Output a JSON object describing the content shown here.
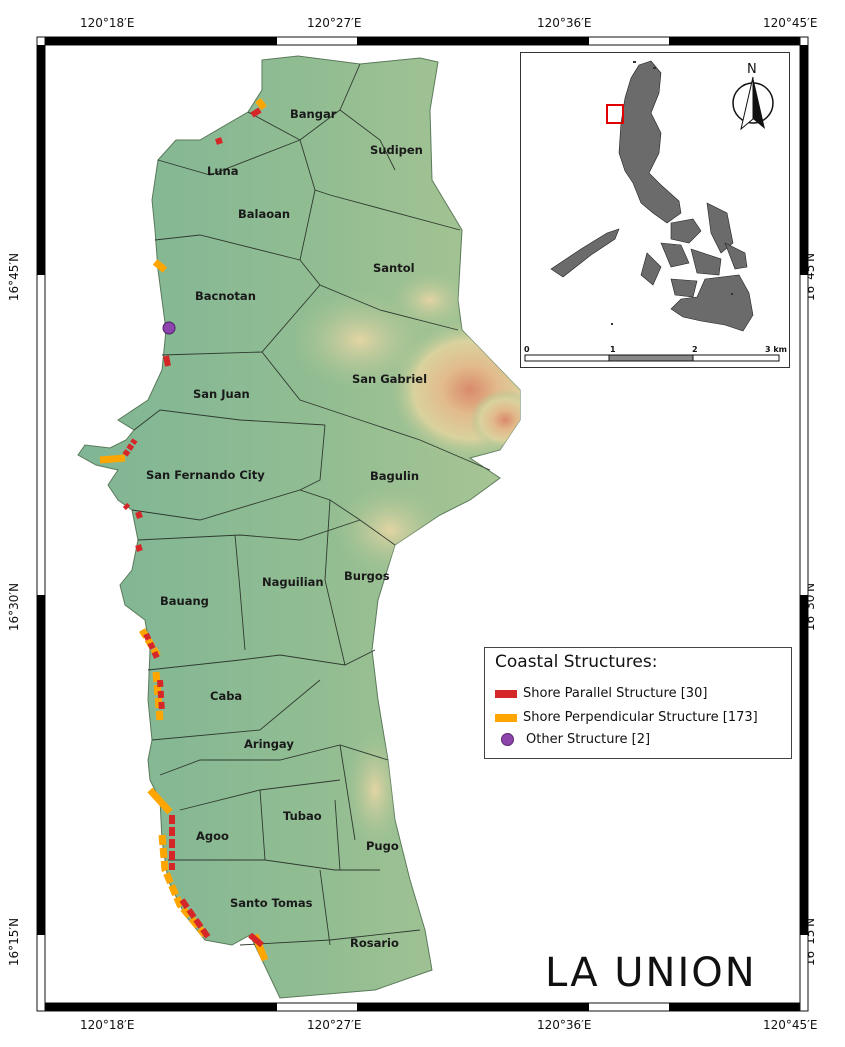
{
  "title": "LA UNION",
  "coordinates": {
    "top": [
      "120°18′E",
      "120°27′E",
      "120°36′E",
      "120°45′E"
    ],
    "bottom": [
      "120°18′E",
      "120°27′E",
      "120°36′E",
      "120°45′E"
    ],
    "left": [
      "16°45′N",
      "16°30′N",
      "16°15′N"
    ],
    "right": [
      "16°45′N",
      "16°30′N",
      "16°15′N"
    ]
  },
  "municipalities": [
    "Bangar",
    "Sudipen",
    "Luna",
    "Balaoan",
    "Santol",
    "Bacnotan",
    "San Gabriel",
    "San Juan",
    "San Fernando City",
    "Bagulin",
    "Naguilian",
    "Burgos",
    "Bauang",
    "Caba",
    "Aringay",
    "Tubao",
    "Agoo",
    "Pugo",
    "Santo Tomas",
    "Rosario"
  ],
  "legend": {
    "title": "Coastal Structures:",
    "items": [
      {
        "label": "Shore Parallel Structure [30]",
        "color": "#d62728"
      },
      {
        "label": "Shore Perpendicular Structure [173]",
        "color": "#ffa500"
      },
      {
        "label": "Other Structure [2]",
        "color": "#8e44ad"
      }
    ]
  },
  "inset": {
    "north_label": "N",
    "scale_labels": [
      "0",
      "1",
      "2",
      "3 km"
    ],
    "land_color": "#6b6b6b"
  },
  "colors": {
    "lowland": "#7fb595",
    "highland": "#d9c79a",
    "peak": "#d98a6a",
    "shore_parallel": "#d62728",
    "shore_perpendicular": "#ffa500",
    "other": "#8e44ad"
  }
}
